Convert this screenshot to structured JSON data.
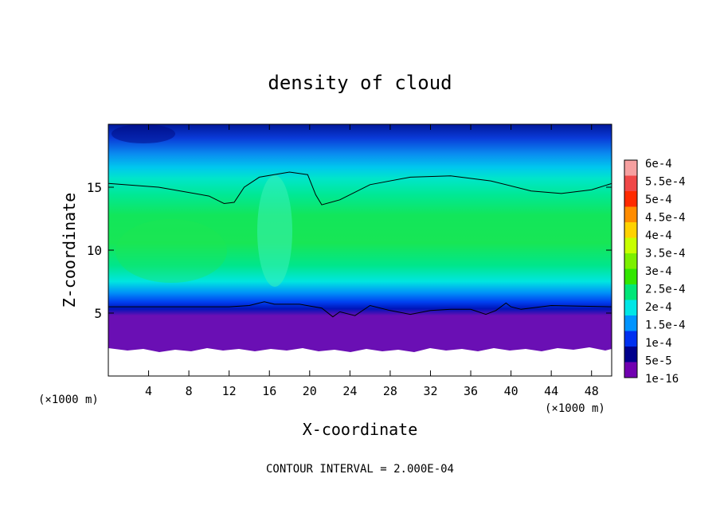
{
  "chart_data": {
    "type": "heatmap",
    "title": "density of cloud",
    "xlabel": "X-coordinate",
    "ylabel": "Z-coordinate",
    "x_unit": "(×1000 m)",
    "z_unit": "(×1000 m)",
    "footer": "CONTOUR INTERVAL = 2.000E-04",
    "xlim": [
      0,
      50
    ],
    "ylim": [
      0,
      20
    ],
    "x_ticks": [
      "4",
      "8",
      "12",
      "16",
      "20",
      "24",
      "28",
      "32",
      "36",
      "40",
      "44",
      "48"
    ],
    "y_ticks": [
      "5",
      "10",
      "15"
    ],
    "colorbar": {
      "labels": [
        "6e-4",
        "5.5e-4",
        "5e-4",
        "4.5e-4",
        "4e-4",
        "3.5e-4",
        "3e-4",
        "2.5e-4",
        "2e-4",
        "1.5e-4",
        "1e-4",
        "5e-5",
        "1e-16"
      ],
      "colors": [
        "#f6a0a0",
        "#f04848",
        "#ff2a00",
        "#ff8c00",
        "#ffd200",
        "#c8ff00",
        "#7cf000",
        "#32e600",
        "#00e678",
        "#00e6e6",
        "#0094ff",
        "#0030f0",
        "#00008c",
        "#7000b0"
      ]
    },
    "contours": [
      {
        "level": "2e-4",
        "path": [
          [
            0,
            15.3
          ],
          [
            5,
            15.0
          ],
          [
            10,
            14.3
          ],
          [
            11.5,
            13.7
          ],
          [
            12.5,
            13.8
          ],
          [
            13.5,
            15.0
          ],
          [
            15,
            15.8
          ],
          [
            18,
            16.2
          ],
          [
            19.8,
            16.0
          ],
          [
            20.6,
            14.4
          ],
          [
            21.2,
            13.6
          ],
          [
            23,
            14.0
          ],
          [
            26,
            15.2
          ],
          [
            30,
            15.8
          ],
          [
            34,
            15.9
          ],
          [
            38,
            15.5
          ],
          [
            42,
            14.7
          ],
          [
            45,
            14.5
          ],
          [
            48,
            14.8
          ],
          [
            50,
            15.3
          ]
        ]
      },
      {
        "level": "2e-4",
        "path": [
          [
            0,
            5.5
          ],
          [
            8,
            5.5
          ],
          [
            12,
            5.5
          ],
          [
            14,
            5.6
          ],
          [
            15.5,
            5.9
          ],
          [
            16.5,
            5.7
          ],
          [
            19,
            5.7
          ],
          [
            21.2,
            5.4
          ],
          [
            22.3,
            4.7
          ],
          [
            23,
            5.1
          ],
          [
            24.5,
            4.8
          ],
          [
            26,
            5.6
          ],
          [
            28,
            5.2
          ],
          [
            30,
            4.9
          ],
          [
            32,
            5.2
          ],
          [
            34,
            5.3
          ],
          [
            36,
            5.3
          ],
          [
            37.5,
            4.9
          ],
          [
            38.5,
            5.2
          ],
          [
            39.5,
            5.8
          ],
          [
            40,
            5.5
          ],
          [
            41,
            5.3
          ],
          [
            44,
            5.6
          ],
          [
            50,
            5.5
          ]
        ]
      }
    ]
  }
}
